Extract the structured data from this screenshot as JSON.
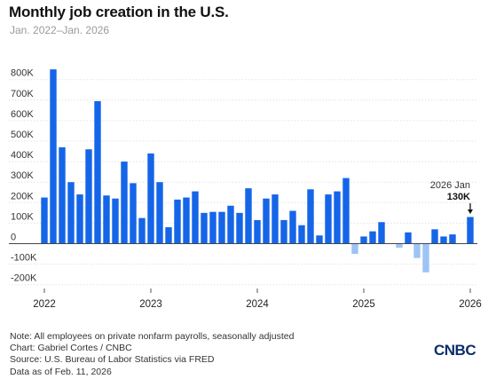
{
  "header": {
    "title": "Monthly job creation in the U.S.",
    "subtitle": "Jan. 2022–Jan. 2026"
  },
  "chart_data": {
    "type": "bar",
    "x": [
      "2022-01",
      "2022-02",
      "2022-03",
      "2022-04",
      "2022-05",
      "2022-06",
      "2022-07",
      "2022-08",
      "2022-09",
      "2022-10",
      "2022-11",
      "2022-12",
      "2023-01",
      "2023-02",
      "2023-03",
      "2023-04",
      "2023-05",
      "2023-06",
      "2023-07",
      "2023-08",
      "2023-09",
      "2023-10",
      "2023-11",
      "2023-12",
      "2024-01",
      "2024-02",
      "2024-03",
      "2024-04",
      "2024-05",
      "2024-06",
      "2024-07",
      "2024-08",
      "2024-09",
      "2024-10",
      "2024-11",
      "2024-12",
      "2025-01",
      "2025-02",
      "2025-03",
      "2025-04",
      "2025-05",
      "2025-06",
      "2025-07",
      "2025-08",
      "2025-09",
      "2025-10",
      "2025-11",
      "2025-12",
      "2026-01"
    ],
    "values": [
      225,
      850,
      470,
      300,
      240,
      460,
      695,
      235,
      220,
      400,
      295,
      125,
      440,
      300,
      80,
      215,
      225,
      255,
      150,
      155,
      155,
      185,
      150,
      270,
      115,
      220,
      240,
      115,
      160,
      90,
      265,
      40,
      240,
      255,
      320,
      -50,
      35,
      60,
      105,
      0,
      -20,
      55,
      -70,
      -140,
      70,
      35,
      45,
      0,
      130
    ],
    "ylabel_unit": "K",
    "ylim": [
      -250,
      900
    ],
    "yticks": [
      -200,
      -100,
      0,
      100,
      200,
      300,
      400,
      500,
      600,
      700,
      800
    ],
    "ytick_labels": [
      "-200K",
      "-100K",
      "0",
      "100K",
      "200K",
      "300K",
      "400K",
      "500K",
      "600K",
      "700K",
      "800K"
    ],
    "xtick_labels": [
      "2022",
      "2023",
      "2024",
      "2025",
      "2026"
    ],
    "xtick_index": [
      0,
      12,
      24,
      36,
      48
    ],
    "colors": {
      "positive": "#1565e8",
      "negative": "#9dc4f4",
      "grid": "#e3e3e3",
      "zero": "#444444"
    },
    "annotation": {
      "label": "2026 Jan",
      "value_label": "130K",
      "index": 48
    },
    "grid": true
  },
  "footer": {
    "note": "Note: All employees on private nonfarm payrolls, seasonally adjusted",
    "credit": "Chart: Gabriel Cortes / CNBC",
    "source": "Source: U.S. Bureau of Labor Statistics via FRED",
    "date": "Data as of Feb. 11, 2026"
  },
  "brand": {
    "logo_text": "CNBC",
    "color": "#0b2d6b"
  }
}
